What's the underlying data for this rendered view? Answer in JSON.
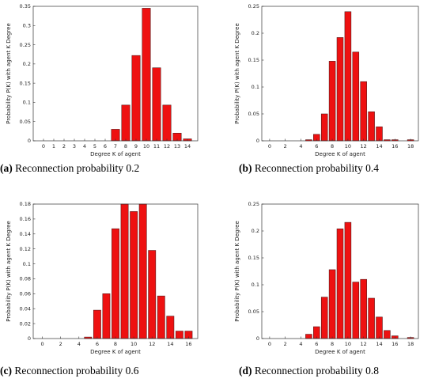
{
  "chart_data": [
    {
      "type": "bar",
      "caption": {
        "letter": "(a)",
        "text": " Reconnection probability 0.2"
      },
      "xlabel": "Degree K of agent",
      "ylabel": "Probability P(K) with agent K Degree",
      "xlim": [
        -1,
        15
      ],
      "ylim": [
        0,
        0.35
      ],
      "xticks": [
        0,
        1,
        2,
        3,
        4,
        5,
        6,
        7,
        8,
        9,
        10,
        11,
        12,
        13,
        14
      ],
      "yticks": [
        0,
        0.05,
        0.1,
        0.15,
        0.2,
        0.25,
        0.3,
        0.35
      ],
      "ytick_labels": [
        "0",
        "0.05",
        "0.1",
        "0.15",
        "0.2",
        "0.25",
        "0.3",
        "0.35"
      ],
      "x": [
        7,
        8,
        9,
        10,
        11,
        12,
        13,
        14
      ],
      "values": [
        0.03,
        0.093,
        0.222,
        0.345,
        0.19,
        0.093,
        0.02,
        0.005
      ]
    },
    {
      "type": "bar",
      "caption": {
        "letter": "(b)",
        "text": " Reconnection probability 0.4"
      },
      "xlabel": "Degree K of agent",
      "ylabel": "Probability P(K) with agent K Degree",
      "xlim": [
        -1,
        19
      ],
      "ylim": [
        0,
        0.25
      ],
      "xticks": [
        0,
        2,
        4,
        6,
        8,
        10,
        12,
        14,
        16,
        18
      ],
      "yticks": [
        0,
        0.05,
        0.1,
        0.15,
        0.2,
        0.25
      ],
      "ytick_labels": [
        "0",
        "0.05",
        "0.1",
        "0.15",
        "0.2",
        "0.25"
      ],
      "x": [
        5,
        6,
        7,
        8,
        9,
        10,
        11,
        12,
        13,
        14,
        15,
        16,
        17,
        18
      ],
      "values": [
        0.002,
        0.012,
        0.05,
        0.148,
        0.192,
        0.24,
        0.165,
        0.11,
        0.054,
        0.026,
        0.002,
        0.002,
        0,
        0.002
      ]
    },
    {
      "type": "bar",
      "caption": {
        "letter": "(c)",
        "text": " Reconnection probability 0.6"
      },
      "xlabel": "Degree K of agent",
      "ylabel": "Probability P(K) with agent K Degree",
      "xlim": [
        -1,
        17
      ],
      "ylim": [
        0,
        0.18
      ],
      "xticks": [
        0,
        2,
        4,
        6,
        8,
        10,
        12,
        14,
        16
      ],
      "yticks": [
        0,
        0.02,
        0.04,
        0.06,
        0.08,
        0.1,
        0.12,
        0.14,
        0.16,
        0.18
      ],
      "ytick_labels": [
        "0",
        "0.02",
        "0.04",
        "0.06",
        "0.08",
        "0.1",
        "0.12",
        "0.14",
        "0.16",
        "0.18"
      ],
      "x": [
        5,
        6,
        7,
        8,
        9,
        10,
        11,
        12,
        13,
        14,
        15,
        16
      ],
      "values": [
        0.002,
        0.038,
        0.06,
        0.147,
        0.18,
        0.17,
        0.18,
        0.118,
        0.057,
        0.03,
        0.01,
        0.01
      ]
    },
    {
      "type": "bar",
      "caption": {
        "letter": "(d)",
        "text": " Reconnection probability 0.8"
      },
      "xlabel": "Degree K of agent",
      "ylabel": "Probability P(K) with agent K Degree",
      "xlim": [
        -1,
        19
      ],
      "ylim": [
        0,
        0.25
      ],
      "xticks": [
        0,
        2,
        4,
        6,
        8,
        10,
        12,
        14,
        16,
        18
      ],
      "yticks": [
        0,
        0.05,
        0.1,
        0.15,
        0.2,
        0.25
      ],
      "ytick_labels": [
        "0",
        "0.05",
        "0.1",
        "0.15",
        "0.2",
        "0.25"
      ],
      "x": [
        5,
        6,
        7,
        8,
        9,
        10,
        11,
        12,
        13,
        14,
        15,
        16,
        17,
        18
      ],
      "values": [
        0.008,
        0.022,
        0.077,
        0.128,
        0.204,
        0.216,
        0.105,
        0.11,
        0.075,
        0.04,
        0.015,
        0.005,
        0,
        0.002
      ]
    }
  ],
  "colors": {
    "bar_fill": "#ee1111",
    "bar_edge": "#5a1a1a",
    "axis": "#333333"
  }
}
